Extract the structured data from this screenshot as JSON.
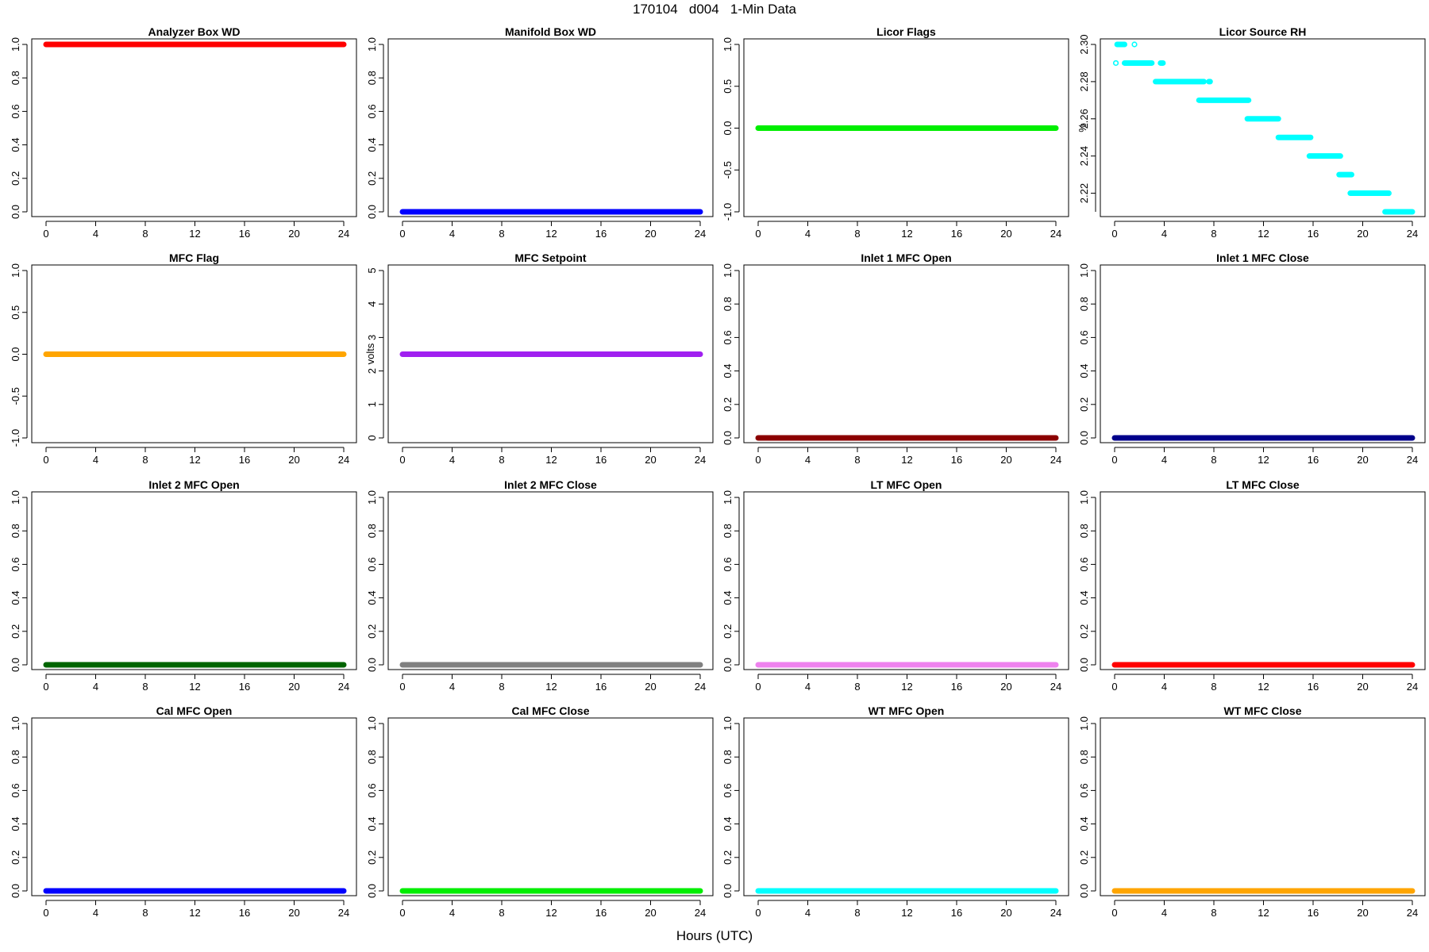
{
  "title": "170104   d004   1-Min Data",
  "xlabel": "Hours (UTC)",
  "chart_data": [
    {
      "type": "scatter",
      "title": "Analyzer Box WD",
      "ylabel": "",
      "color": "#ff0000",
      "xlim": [
        0,
        24
      ],
      "ylim": [
        0,
        1
      ],
      "xticks": [
        "0",
        "4",
        "8",
        "12",
        "16",
        "20",
        "24"
      ],
      "yticks": [
        "0.0",
        "0.2",
        "0.4",
        "0.6",
        "0.8",
        "1.0"
      ],
      "series": [
        {
          "segments": [
            {
              "x": [
                0,
                24
              ],
              "y": 1
            }
          ]
        }
      ]
    },
    {
      "type": "scatter",
      "title": "Manifold Box WD",
      "ylabel": "",
      "color": "#0000ff",
      "xlim": [
        0,
        24
      ],
      "ylim": [
        0,
        1
      ],
      "xticks": [
        "0",
        "4",
        "8",
        "12",
        "16",
        "20",
        "24"
      ],
      "yticks": [
        "0.0",
        "0.2",
        "0.4",
        "0.6",
        "0.8",
        "1.0"
      ],
      "series": [
        {
          "segments": [
            {
              "x": [
                0,
                24
              ],
              "y": 0
            }
          ]
        }
      ]
    },
    {
      "type": "scatter",
      "title": "Licor Flags",
      "ylabel": "",
      "color": "#00ee00",
      "xlim": [
        0,
        24
      ],
      "ylim": [
        -1,
        1
      ],
      "xticks": [
        "0",
        "4",
        "8",
        "12",
        "16",
        "20",
        "24"
      ],
      "yticks": [
        "-1.0",
        "-0.5",
        "0.0",
        "0.5",
        "1.0"
      ],
      "series": [
        {
          "segments": [
            {
              "x": [
                0,
                24
              ],
              "y": 0
            }
          ]
        }
      ]
    },
    {
      "type": "scatter",
      "title": "Licor Source RH",
      "ylabel": "%",
      "color": "#00ffff",
      "xlim": [
        0,
        24
      ],
      "ylim": [
        2.21,
        2.3
      ],
      "xticks": [
        "0",
        "4",
        "8",
        "12",
        "16",
        "20",
        "24"
      ],
      "yticks": [
        "2.22",
        "2.24",
        "2.26",
        "2.28",
        "2.30"
      ],
      "series": [
        {
          "segments": [
            {
              "x": [
                0.1,
                0.1
              ],
              "y": 2.29
            },
            {
              "x": [
                0.2,
                0.8
              ],
              "y": 2.3
            },
            {
              "x": [
                1.6,
                1.6
              ],
              "y": 2.3
            },
            {
              "x": [
                0.8,
                3.0
              ],
              "y": 2.29
            },
            {
              "x": [
                3.7,
                3.9
              ],
              "y": 2.29
            },
            {
              "x": [
                3.3,
                7.2
              ],
              "y": 2.28
            },
            {
              "x": [
                7.6,
                7.7
              ],
              "y": 2.28
            },
            {
              "x": [
                6.8,
                10.8
              ],
              "y": 2.27
            },
            {
              "x": [
                10.7,
                13.2
              ],
              "y": 2.26
            },
            {
              "x": [
                13.2,
                15.8
              ],
              "y": 2.25
            },
            {
              "x": [
                15.7,
                18.2
              ],
              "y": 2.24
            },
            {
              "x": [
                18.1,
                19.1
              ],
              "y": 2.23
            },
            {
              "x": [
                19.0,
                22.0
              ],
              "y": 2.22
            },
            {
              "x": [
                22.1,
                22.1
              ],
              "y": 2.22
            },
            {
              "x": [
                21.8,
                24.0
              ],
              "y": 2.21
            }
          ]
        }
      ]
    },
    {
      "type": "scatter",
      "title": "MFC Flag",
      "ylabel": "",
      "color": "#ffa500",
      "xlim": [
        0,
        24
      ],
      "ylim": [
        -1,
        1
      ],
      "xticks": [
        "0",
        "4",
        "8",
        "12",
        "16",
        "20",
        "24"
      ],
      "yticks": [
        "-1.0",
        "-0.5",
        "0.0",
        "0.5",
        "1.0"
      ],
      "series": [
        {
          "segments": [
            {
              "x": [
                0,
                24
              ],
              "y": 0
            }
          ]
        }
      ]
    },
    {
      "type": "scatter",
      "title": "MFC Setpoint",
      "ylabel": "volts",
      "color": "#a020f0",
      "xlim": [
        0,
        24
      ],
      "ylim": [
        0,
        5
      ],
      "xticks": [
        "0",
        "4",
        "8",
        "12",
        "16",
        "20",
        "24"
      ],
      "yticks": [
        "0",
        "1",
        "2",
        "3",
        "4",
        "5"
      ],
      "series": [
        {
          "segments": [
            {
              "x": [
                0,
                24
              ],
              "y": 2.5
            }
          ]
        }
      ]
    },
    {
      "type": "scatter",
      "title": "Inlet 1 MFC Open",
      "ylabel": "",
      "color": "#8b0000",
      "xlim": [
        0,
        24
      ],
      "ylim": [
        0,
        1
      ],
      "xticks": [
        "0",
        "4",
        "8",
        "12",
        "16",
        "20",
        "24"
      ],
      "yticks": [
        "0.0",
        "0.2",
        "0.4",
        "0.6",
        "0.8",
        "1.0"
      ],
      "series": [
        {
          "segments": [
            {
              "x": [
                0,
                24
              ],
              "y": 0
            }
          ]
        }
      ]
    },
    {
      "type": "scatter",
      "title": "Inlet 1 MFC Close",
      "ylabel": "",
      "color": "#00008b",
      "xlim": [
        0,
        24
      ],
      "ylim": [
        0,
        1
      ],
      "xticks": [
        "0",
        "4",
        "8",
        "12",
        "16",
        "20",
        "24"
      ],
      "yticks": [
        "0.0",
        "0.2",
        "0.4",
        "0.6",
        "0.8",
        "1.0"
      ],
      "series": [
        {
          "segments": [
            {
              "x": [
                0,
                24
              ],
              "y": 0
            }
          ]
        }
      ]
    },
    {
      "type": "scatter",
      "title": "Inlet 2 MFC Open",
      "ylabel": "",
      "color": "#006400",
      "xlim": [
        0,
        24
      ],
      "ylim": [
        0,
        1
      ],
      "xticks": [
        "0",
        "4",
        "8",
        "12",
        "16",
        "20",
        "24"
      ],
      "yticks": [
        "0.0",
        "0.2",
        "0.4",
        "0.6",
        "0.8",
        "1.0"
      ],
      "series": [
        {
          "segments": [
            {
              "x": [
                0,
                24
              ],
              "y": 0
            }
          ]
        }
      ]
    },
    {
      "type": "scatter",
      "title": "Inlet 2 MFC Close",
      "ylabel": "",
      "color": "#808080",
      "xlim": [
        0,
        24
      ],
      "ylim": [
        0,
        1
      ],
      "xticks": [
        "0",
        "4",
        "8",
        "12",
        "16",
        "20",
        "24"
      ],
      "yticks": [
        "0.0",
        "0.2",
        "0.4",
        "0.6",
        "0.8",
        "1.0"
      ],
      "series": [
        {
          "segments": [
            {
              "x": [
                0,
                24
              ],
              "y": 0
            }
          ]
        }
      ]
    },
    {
      "type": "scatter",
      "title": "LT MFC Open",
      "ylabel": "",
      "color": "#ee82ee",
      "xlim": [
        0,
        24
      ],
      "ylim": [
        0,
        1
      ],
      "xticks": [
        "0",
        "4",
        "8",
        "12",
        "16",
        "20",
        "24"
      ],
      "yticks": [
        "0.0",
        "0.2",
        "0.4",
        "0.6",
        "0.8",
        "1.0"
      ],
      "series": [
        {
          "segments": [
            {
              "x": [
                0,
                24
              ],
              "y": 0
            }
          ]
        }
      ]
    },
    {
      "type": "scatter",
      "title": "LT MFC Close",
      "ylabel": "",
      "color": "#ff0000",
      "xlim": [
        0,
        24
      ],
      "ylim": [
        0,
        1
      ],
      "xticks": [
        "0",
        "4",
        "8",
        "12",
        "16",
        "20",
        "24"
      ],
      "yticks": [
        "0.0",
        "0.2",
        "0.4",
        "0.6",
        "0.8",
        "1.0"
      ],
      "series": [
        {
          "segments": [
            {
              "x": [
                0,
                24
              ],
              "y": 0
            }
          ]
        }
      ]
    },
    {
      "type": "scatter",
      "title": "Cal MFC Open",
      "ylabel": "",
      "color": "#0000ff",
      "xlim": [
        0,
        24
      ],
      "ylim": [
        0,
        1
      ],
      "xticks": [
        "0",
        "4",
        "8",
        "12",
        "16",
        "20",
        "24"
      ],
      "yticks": [
        "0.0",
        "0.2",
        "0.4",
        "0.6",
        "0.8",
        "1.0"
      ],
      "series": [
        {
          "segments": [
            {
              "x": [
                0,
                24
              ],
              "y": 0
            }
          ]
        }
      ]
    },
    {
      "type": "scatter",
      "title": "Cal MFC Close",
      "ylabel": "",
      "color": "#00ee00",
      "xlim": [
        0,
        24
      ],
      "ylim": [
        0,
        1
      ],
      "xticks": [
        "0",
        "4",
        "8",
        "12",
        "16",
        "20",
        "24"
      ],
      "yticks": [
        "0.0",
        "0.2",
        "0.4",
        "0.6",
        "0.8",
        "1.0"
      ],
      "series": [
        {
          "segments": [
            {
              "x": [
                0,
                24
              ],
              "y": 0
            }
          ]
        }
      ]
    },
    {
      "type": "scatter",
      "title": "WT MFC Open",
      "ylabel": "",
      "color": "#00ffff",
      "xlim": [
        0,
        24
      ],
      "ylim": [
        0,
        1
      ],
      "xticks": [
        "0",
        "4",
        "8",
        "12",
        "16",
        "20",
        "24"
      ],
      "yticks": [
        "0.0",
        "0.2",
        "0.4",
        "0.6",
        "0.8",
        "1.0"
      ],
      "series": [
        {
          "segments": [
            {
              "x": [
                0,
                24
              ],
              "y": 0
            }
          ]
        }
      ]
    },
    {
      "type": "scatter",
      "title": "WT MFC Close",
      "ylabel": "",
      "color": "#ffa500",
      "xlim": [
        0,
        24
      ],
      "ylim": [
        0,
        1
      ],
      "xticks": [
        "0",
        "4",
        "8",
        "12",
        "16",
        "20",
        "24"
      ],
      "yticks": [
        "0.0",
        "0.2",
        "0.4",
        "0.6",
        "0.8",
        "1.0"
      ],
      "series": [
        {
          "segments": [
            {
              "x": [
                0,
                24
              ],
              "y": 0
            }
          ]
        }
      ]
    }
  ]
}
